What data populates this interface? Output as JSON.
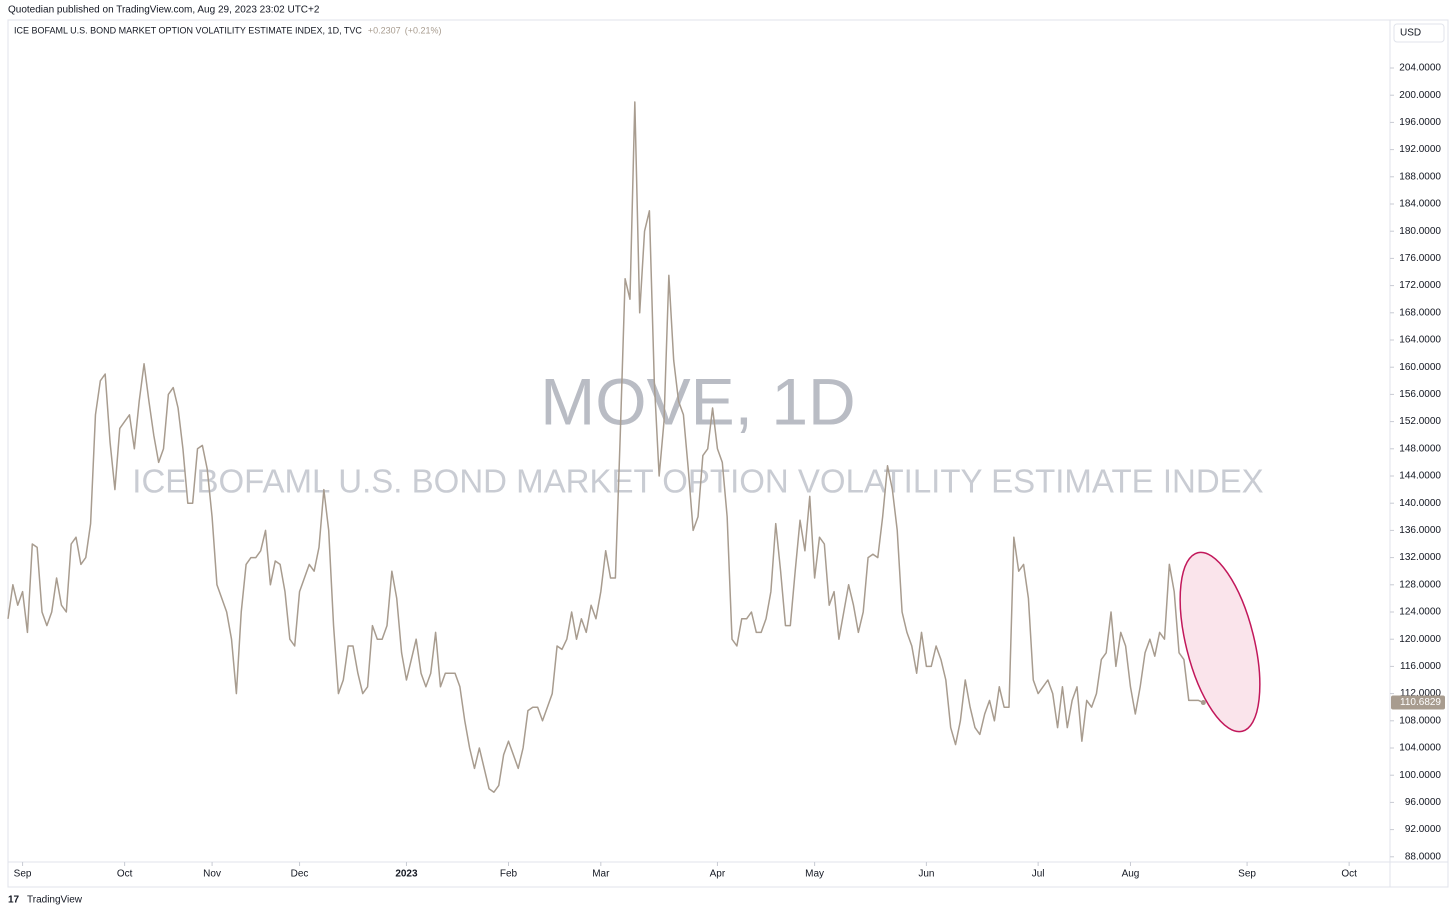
{
  "header": "Quotedian published on TradingView.com, Aug 29, 2023 23:02 UTC+2",
  "footer": "TradingView",
  "chart_data": {
    "type": "line",
    "legend_title": "ICE BOFAML U.S. BOND MARKET OPTION VOLATILITY ESTIMATE INDEX, 1D, TVC",
    "change": "+0.2307",
    "change_pct": "(+0.21%)",
    "currency": "USD",
    "watermark": "MOVE, 1D",
    "watermark_subtitle": "ICE BOFAML U.S. BOND MARKET OPTION VOLATILITY ESTIMATE INDEX",
    "series": [
      {
        "name": "MOVE",
        "color": "#a89c8f",
        "values": [
          123,
          128,
          125,
          127,
          121,
          134,
          133.5,
          124,
          122,
          124,
          129,
          125,
          124,
          134,
          135,
          131,
          132,
          137,
          153,
          158,
          159,
          149,
          142,
          151,
          152,
          153,
          148,
          155,
          160.5,
          155,
          150,
          146,
          148,
          156,
          157,
          154,
          148,
          140,
          140,
          148,
          148.5,
          145,
          138,
          128,
          126,
          124,
          120,
          112,
          124,
          131,
          132,
          132,
          133,
          136,
          128,
          131.5,
          131,
          127,
          120,
          119,
          127,
          129,
          131,
          130,
          133.5,
          142,
          136,
          122,
          112,
          114,
          119,
          119,
          115,
          112,
          113,
          122,
          120,
          120,
          122,
          130,
          126,
          118,
          114,
          117,
          120,
          115,
          113,
          115,
          121,
          113,
          115,
          115,
          115,
          113,
          108,
          104,
          101,
          104,
          101,
          98,
          97.5,
          98.5,
          103,
          105,
          103,
          101,
          104,
          109.5,
          110,
          110,
          108,
          110,
          112,
          119,
          118.5,
          120,
          124,
          120,
          123,
          121,
          125,
          123,
          127,
          133,
          129,
          129,
          150,
          173,
          170,
          199,
          168,
          180,
          183,
          158,
          144,
          152,
          173.5,
          161,
          155,
          153,
          145,
          136,
          138,
          147,
          148,
          154,
          148,
          146,
          138,
          120,
          119,
          123,
          123,
          124,
          121,
          121,
          123,
          127,
          137,
          130,
          122,
          122,
          130,
          137.5,
          133,
          141,
          129,
          135,
          134,
          125,
          127,
          120,
          124,
          128,
          125,
          121,
          124,
          132,
          132.5,
          132,
          138,
          145.5,
          142,
          136,
          124,
          121,
          119,
          115,
          121,
          116,
          116,
          119,
          117,
          114,
          107,
          104.5,
          108,
          114,
          110,
          107,
          106,
          109,
          111,
          108,
          113,
          110,
          110,
          135,
          130,
          131,
          126,
          114,
          112,
          113,
          114,
          112,
          107,
          113,
          107,
          111,
          113,
          105,
          111,
          110,
          112,
          117,
          118,
          124,
          116,
          121,
          119,
          113,
          109,
          113,
          118,
          120,
          117.5,
          121,
          120,
          131,
          127,
          118,
          117,
          111,
          111,
          111,
          110.6829
        ]
      }
    ],
    "xlim": [
      0,
      284
    ],
    "xticks": [
      {
        "value": 3,
        "label": "Sep"
      },
      {
        "value": 24,
        "label": "Oct"
      },
      {
        "value": 42,
        "label": "Nov"
      },
      {
        "value": 60,
        "label": "Dec"
      },
      {
        "value": 82,
        "label": "2023"
      },
      {
        "value": 103,
        "label": "Feb"
      },
      {
        "value": 122,
        "label": "Mar"
      },
      {
        "value": 146,
        "label": "Apr"
      },
      {
        "value": 166,
        "label": "May"
      },
      {
        "value": 189,
        "label": "Jun"
      },
      {
        "value": 212,
        "label": "Jul"
      },
      {
        "value": 231,
        "label": "Aug"
      },
      {
        "value": 255,
        "label": "Sep"
      },
      {
        "value": 276,
        "label": "Oct"
      }
    ],
    "ylim": [
      87,
      211
    ],
    "yticks": [
      {
        "value": 88,
        "label": "88.0000"
      },
      {
        "value": 92,
        "label": "92.0000"
      },
      {
        "value": 96,
        "label": "96.0000"
      },
      {
        "value": 100,
        "label": "100.0000"
      },
      {
        "value": 104,
        "label": "104.0000"
      },
      {
        "value": 108,
        "label": "108.0000"
      },
      {
        "value": 112,
        "label": "112.0000"
      },
      {
        "value": 116,
        "label": "116.0000"
      },
      {
        "value": 120,
        "label": "120.0000"
      },
      {
        "value": 124,
        "label": "124.0000"
      },
      {
        "value": 128,
        "label": "128.0000"
      },
      {
        "value": 132,
        "label": "132.0000"
      },
      {
        "value": 136,
        "label": "136.0000"
      },
      {
        "value": 140,
        "label": "140.0000"
      },
      {
        "value": 144,
        "label": "144.0000"
      },
      {
        "value": 148,
        "label": "148.0000"
      },
      {
        "value": 152,
        "label": "152.0000"
      },
      {
        "value": 156,
        "label": "156.0000"
      },
      {
        "value": 160,
        "label": "160.0000"
      },
      {
        "value": 164,
        "label": "164.0000"
      },
      {
        "value": 168,
        "label": "168.0000"
      },
      {
        "value": 172,
        "label": "172.0000"
      },
      {
        "value": 176,
        "label": "176.0000"
      },
      {
        "value": 180,
        "label": "180.0000"
      },
      {
        "value": 184,
        "label": "184.0000"
      },
      {
        "value": 188,
        "label": "188.0000"
      },
      {
        "value": 192,
        "label": "192.0000"
      },
      {
        "value": 196,
        "label": "196.0000"
      },
      {
        "value": 200,
        "label": "200.0000"
      },
      {
        "value": 204,
        "label": "204.0000"
      }
    ],
    "grid": false
  }
}
